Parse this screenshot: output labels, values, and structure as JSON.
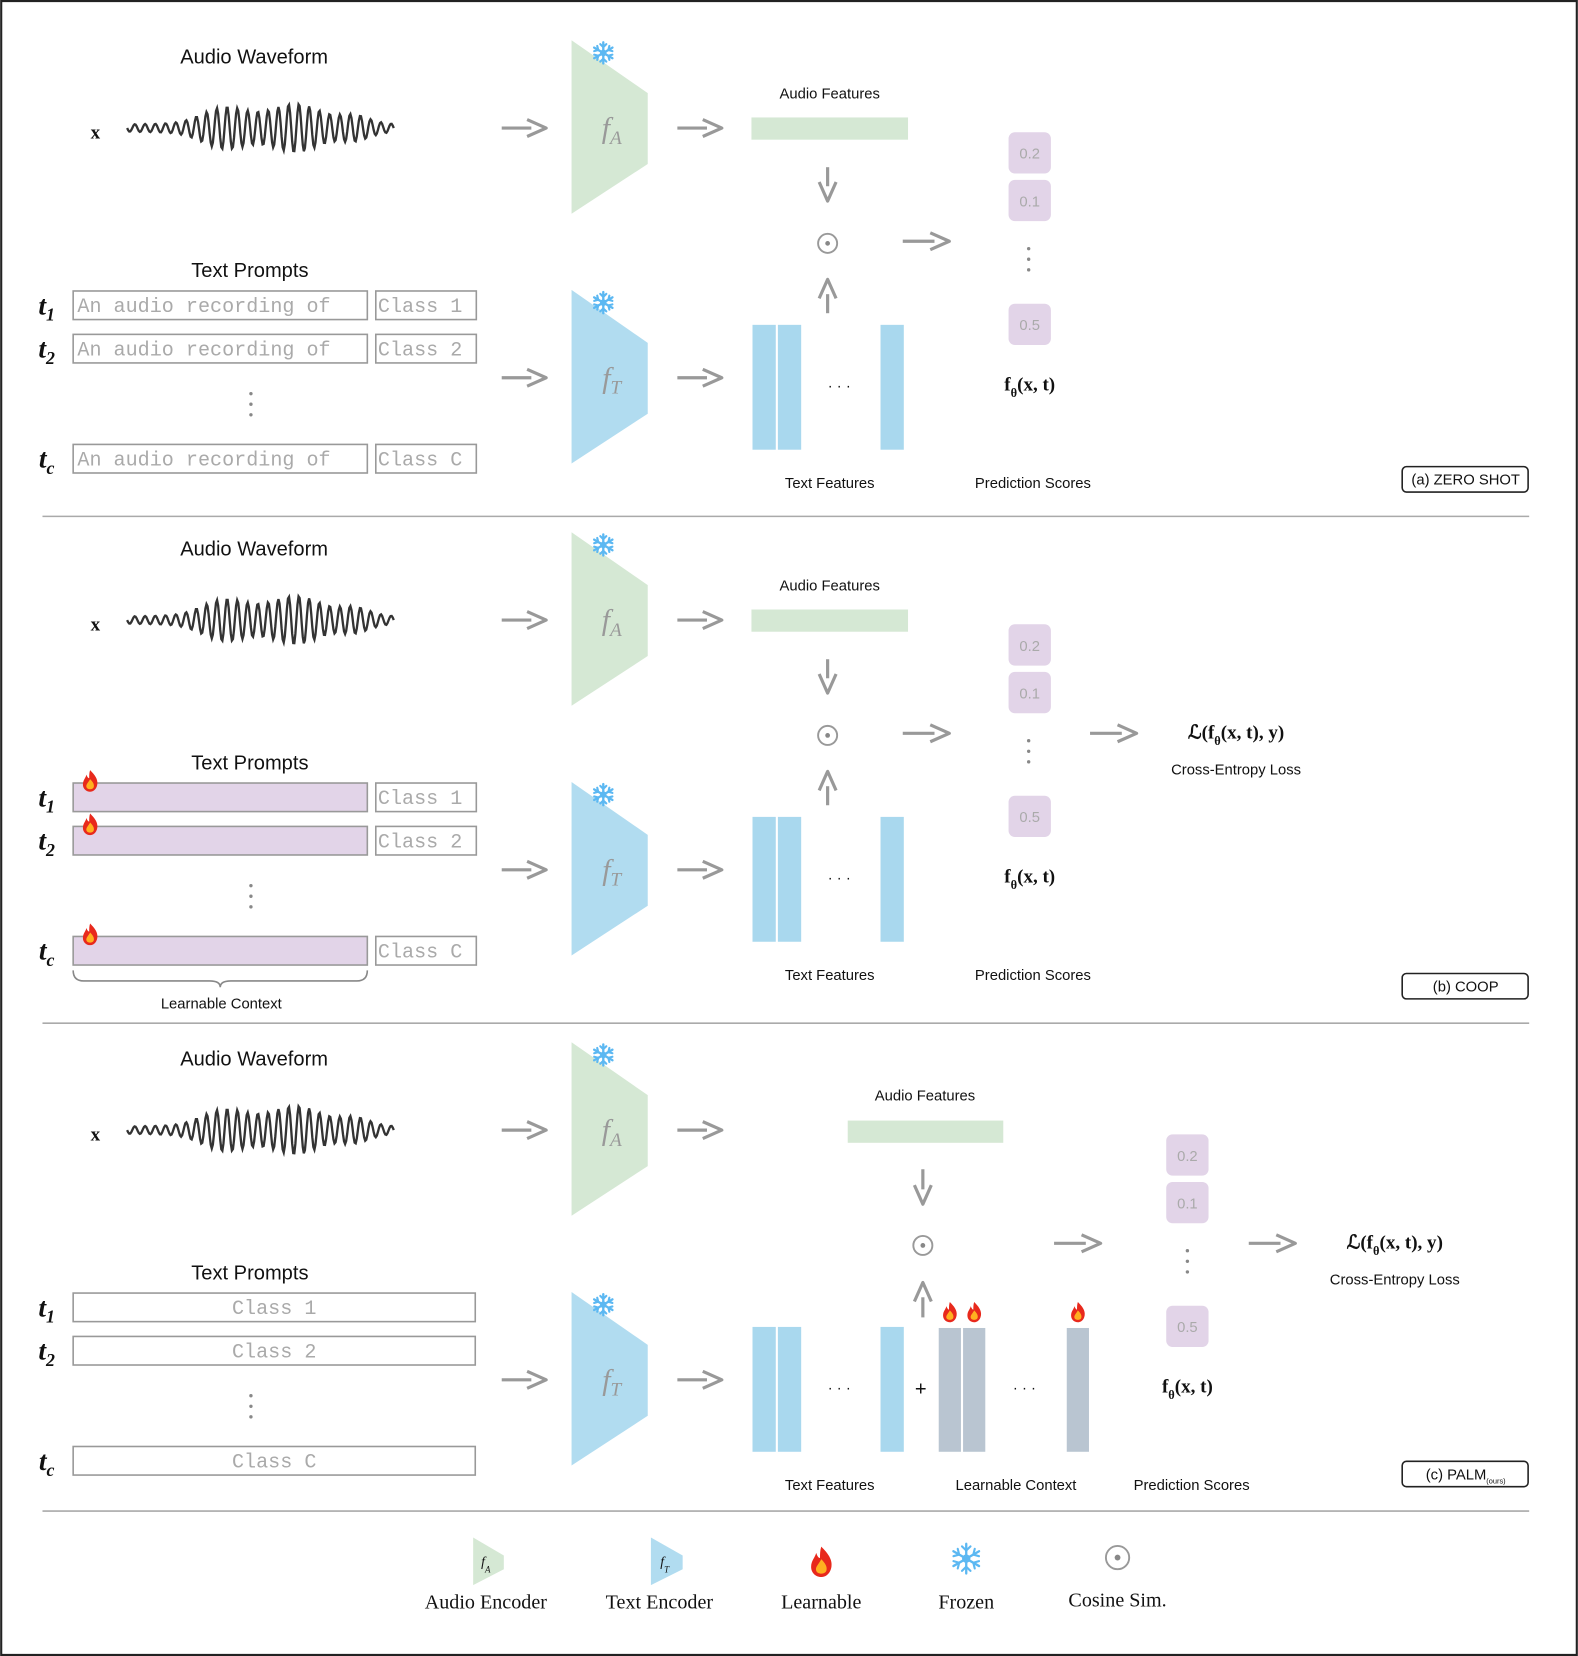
{
  "colors": {
    "audio_encoder": "#d5e8d4",
    "text_encoder": "#b1dcf0",
    "text_feature": "#a9d8ee",
    "learnable_context": "#b9c5d1",
    "prompt_learnable": "#e2d4e8",
    "score_box": "#e2d4e8",
    "arrow": "#999999",
    "frozen": "#5cb8f2",
    "flame_outer": "#e8291c",
    "flame_inner": "#ffb020"
  },
  "common": {
    "audio_title": "Audio Waveform",
    "input_symbol": "x",
    "text_prompts_title": "Text Prompts",
    "audio_encoder": {
      "base": "f",
      "sub": "A"
    },
    "text_encoder": {
      "base": "f",
      "sub": "T"
    },
    "audio_features": "Audio Features",
    "text_features": "Text Features",
    "prediction_scores": "Prediction Scores",
    "learnable_context": "Learnable Context",
    "prompt_ids": [
      {
        "base": "t",
        "sub": "1"
      },
      {
        "base": "t",
        "sub": "2"
      },
      {
        "base": "t",
        "sub": "c"
      }
    ],
    "prompt_prefix": "An audio recording of",
    "classes": [
      "Class 1",
      "Class 2",
      "Class C"
    ],
    "scores": [
      "0.2",
      "0.1",
      "0.5"
    ],
    "score_fn": {
      "base": "f",
      "sub": "θ",
      "args": "(x, t)"
    },
    "loss": {
      "pre": "ℒ(f",
      "sub": "θ",
      "post": "(x, t), y)"
    },
    "loss_label": "Cross-Entropy Loss",
    "plus": "+",
    "hdots": "· · ·"
  },
  "panels": [
    {
      "tag": "(a) ZERO SHOT",
      "tag_sub": "",
      "mode": "zero-shot"
    },
    {
      "tag": "(b)  COOP",
      "tag_sub": "",
      "mode": "coop"
    },
    {
      "tag": "(c)  PALM",
      "tag_sub": "(ours)",
      "mode": "palm"
    }
  ],
  "legend": [
    {
      "icon": "audio-encoder-icon",
      "label": "Audio Encoder"
    },
    {
      "icon": "text-encoder-icon",
      "label": "Text Encoder"
    },
    {
      "icon": "flame-icon",
      "label": "Learnable"
    },
    {
      "icon": "snowflake-icon",
      "label": "Frozen"
    },
    {
      "icon": "cosine-similarity-icon",
      "label": "Cosine Sim."
    }
  ]
}
